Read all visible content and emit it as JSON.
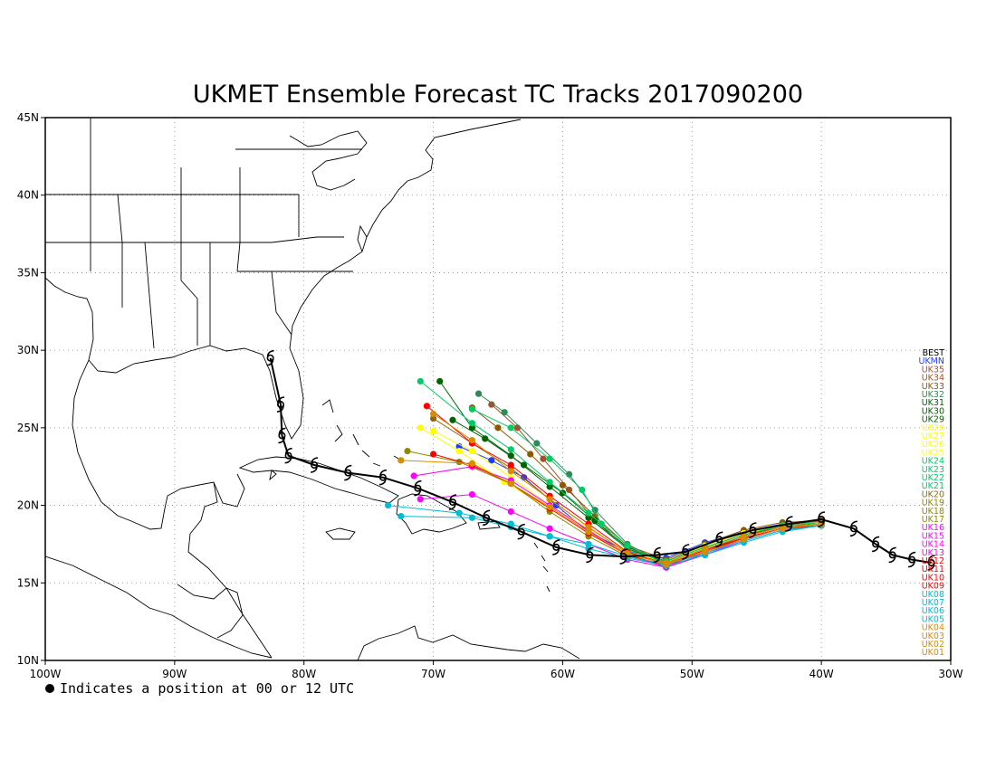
{
  "title": "UKMET Ensemble Forecast TC Tracks 2017090200",
  "footnote": "Indicates a position at 00 or 12 UTC",
  "map": {
    "lon_range": [
      -100,
      -30
    ],
    "lat_range": [
      10,
      45
    ],
    "lon_ticks": [
      {
        "value": -100,
        "label": "100W"
      },
      {
        "value": -90,
        "label": "90W"
      },
      {
        "value": -80,
        "label": "80W"
      },
      {
        "value": -70,
        "label": "70W"
      },
      {
        "value": -60,
        "label": "60W"
      },
      {
        "value": -50,
        "label": "50W"
      },
      {
        "value": -40,
        "label": "40W"
      },
      {
        "value": -30,
        "label": "30W"
      }
    ],
    "lat_ticks": [
      {
        "value": 10,
        "label": "10N"
      },
      {
        "value": 15,
        "label": "15N"
      },
      {
        "value": 20,
        "label": "20N"
      },
      {
        "value": 25,
        "label": "25N"
      },
      {
        "value": 30,
        "label": "30N"
      },
      {
        "value": 35,
        "label": "35N"
      },
      {
        "value": 40,
        "label": "40N"
      },
      {
        "value": 45,
        "label": "45N"
      }
    ],
    "grid": true
  },
  "best_track": [
    [
      -31.5,
      16.3
    ],
    [
      -33.0,
      16.5
    ],
    [
      -34.5,
      16.8
    ],
    [
      -35.8,
      17.5
    ],
    [
      -37.5,
      18.5
    ],
    [
      -40.0,
      19.1
    ],
    [
      -42.5,
      18.8
    ],
    [
      -45.3,
      18.4
    ],
    [
      -47.9,
      17.8
    ],
    [
      -50.5,
      17.0
    ],
    [
      -52.7,
      16.8
    ],
    [
      -55.3,
      16.7
    ],
    [
      -57.9,
      16.8
    ],
    [
      -60.5,
      17.3
    ],
    [
      -63.2,
      18.3
    ],
    [
      -65.9,
      19.2
    ],
    [
      -68.5,
      20.2
    ],
    [
      -71.2,
      21.1
    ],
    [
      -73.9,
      21.8
    ],
    [
      -76.6,
      22.1
    ],
    [
      -79.2,
      22.6
    ],
    [
      -81.2,
      23.2
    ],
    [
      -81.7,
      24.5
    ],
    [
      -81.8,
      26.5
    ],
    [
      -82.6,
      29.5
    ]
  ],
  "legend": [
    {
      "label": "BEST",
      "color": "#000000"
    },
    {
      "label": "UKMN",
      "color": "#1e3cff"
    },
    {
      "label": "UK35",
      "color": "#a0522d"
    },
    {
      "label": "UK34",
      "color": "#a0522d"
    },
    {
      "label": "UK33",
      "color": "#8b5a00"
    },
    {
      "label": "UK32",
      "color": "#2e8b57"
    },
    {
      "label": "UK31",
      "color": "#006400"
    },
    {
      "label": "UK30",
      "color": "#006400"
    },
    {
      "label": "UK29",
      "color": "#006400"
    },
    {
      "label": "UK28",
      "color": "#ffff00"
    },
    {
      "label": "UK27",
      "color": "#ffff00"
    },
    {
      "label": "UK26",
      "color": "#ffff00"
    },
    {
      "label": "UK25",
      "color": "#ffff00"
    },
    {
      "label": "UK24",
      "color": "#00cc66"
    },
    {
      "label": "UK23",
      "color": "#00cc66"
    },
    {
      "label": "UK22",
      "color": "#00cc66"
    },
    {
      "label": "UK21",
      "color": "#00cc66"
    },
    {
      "label": "UK20",
      "color": "#8b6914"
    },
    {
      "label": "UK19",
      "color": "#8b8b00"
    },
    {
      "label": "UK18",
      "color": "#8b8b00"
    },
    {
      "label": "UK17",
      "color": "#8b8b00"
    },
    {
      "label": "UK16",
      "color": "#ff00ff"
    },
    {
      "label": "UK15",
      "color": "#ff00ff"
    },
    {
      "label": "UK14",
      "color": "#ff00ff"
    },
    {
      "label": "UK13",
      "color": "#ff00ff"
    },
    {
      "label": "UK12",
      "color": "#ff0000"
    },
    {
      "label": "UK11",
      "color": "#ff0000"
    },
    {
      "label": "UK10",
      "color": "#ff0000"
    },
    {
      "label": "UK09",
      "color": "#ff0000"
    },
    {
      "label": "UK08",
      "color": "#00bcd4"
    },
    {
      "label": "UK07",
      "color": "#00bcd4"
    },
    {
      "label": "UK06",
      "color": "#00bcd4"
    },
    {
      "label": "UK05",
      "color": "#00bcd4"
    },
    {
      "label": "UK04",
      "color": "#d98c00"
    },
    {
      "label": "UK03",
      "color": "#d98c00"
    },
    {
      "label": "UK02",
      "color": "#d98c00"
    },
    {
      "label": "UK01",
      "color": "#d98c00"
    }
  ],
  "ensemble_tracks": [
    {
      "member": "UKMN",
      "color": "#1e3cff",
      "points": [
        [
          -40,
          19.0
        ],
        [
          -43,
          18.8
        ],
        [
          -46,
          18.3
        ],
        [
          -49,
          17.6
        ],
        [
          -52,
          16.6
        ],
        [
          -55,
          17.0
        ],
        [
          -58,
          18.3
        ],
        [
          -60.5,
          20.0
        ],
        [
          -63,
          21.8
        ],
        [
          -65.5,
          22.9
        ],
        [
          -68,
          23.8
        ]
      ]
    },
    {
      "member": "UK35",
      "color": "#a0522d",
      "points": [
        [
          -40,
          19.0
        ],
        [
          -43,
          18.7
        ],
        [
          -46,
          18.2
        ],
        [
          -49,
          17.4
        ],
        [
          -52,
          16.4
        ],
        [
          -55,
          17.2
        ],
        [
          -57.5,
          19.0
        ],
        [
          -59.5,
          21.0
        ],
        [
          -61.5,
          23.0
        ],
        [
          -63.5,
          25.0
        ],
        [
          -65.5,
          26.5
        ]
      ]
    },
    {
      "member": "UK33",
      "color": "#8b5a00",
      "points": [
        [
          -40,
          19.0
        ],
        [
          -43,
          18.9
        ],
        [
          -46,
          18.4
        ],
        [
          -49,
          17.5
        ],
        [
          -52,
          16.5
        ],
        [
          -55,
          17.4
        ],
        [
          -57.5,
          19.3
        ],
        [
          -60,
          21.3
        ],
        [
          -62.5,
          23.3
        ],
        [
          -65,
          25.0
        ],
        [
          -67,
          26.3
        ]
      ]
    },
    {
      "member": "UK32",
      "color": "#2e8b57",
      "points": [
        [
          -40,
          18.9
        ],
        [
          -43,
          18.6
        ],
        [
          -46,
          18.0
        ],
        [
          -49,
          17.2
        ],
        [
          -52,
          16.2
        ],
        [
          -55,
          17.5
        ],
        [
          -57.5,
          19.7
        ],
        [
          -59.5,
          22.0
        ],
        [
          -62,
          24.0
        ],
        [
          -64.5,
          26.0
        ],
        [
          -66.5,
          27.2
        ]
      ]
    },
    {
      "member": "UK31",
      "color": "#006400",
      "points": [
        [
          -40,
          18.8
        ],
        [
          -43,
          18.5
        ],
        [
          -46,
          17.9
        ],
        [
          -49,
          17.1
        ],
        [
          -52,
          16.3
        ],
        [
          -55,
          17.2
        ],
        [
          -58,
          19.2
        ],
        [
          -61,
          21.2
        ],
        [
          -64,
          23.2
        ],
        [
          -67,
          25.0
        ],
        [
          -69.5,
          28.0
        ]
      ]
    },
    {
      "member": "UK29",
      "color": "#006400",
      "points": [
        [
          -40,
          18.8
        ],
        [
          -43,
          18.6
        ],
        [
          -46,
          18.1
        ],
        [
          -49,
          17.3
        ],
        [
          -52,
          16.4
        ],
        [
          -55,
          17.3
        ],
        [
          -57.5,
          19.0
        ],
        [
          -60,
          20.8
        ],
        [
          -63,
          22.6
        ],
        [
          -66,
          24.3
        ],
        [
          -68.5,
          25.5
        ]
      ]
    },
    {
      "member": "UK27",
      "color": "#ffff00",
      "points": [
        [
          -40,
          18.9
        ],
        [
          -43,
          18.7
        ],
        [
          -46,
          18.2
        ],
        [
          -49,
          17.4
        ],
        [
          -52,
          16.3
        ],
        [
          -55,
          17.0
        ],
        [
          -58,
          18.5
        ],
        [
          -61,
          20.0
        ],
        [
          -64,
          21.8
        ],
        [
          -67,
          23.5
        ],
        [
          -70,
          24.8
        ]
      ]
    },
    {
      "member": "UK25",
      "color": "#ffff00",
      "points": [
        [
          -40,
          18.8
        ],
        [
          -43,
          18.6
        ],
        [
          -46,
          18.0
        ],
        [
          -49,
          17.2
        ],
        [
          -52,
          16.2
        ],
        [
          -55,
          16.9
        ],
        [
          -58,
          18.2
        ],
        [
          -61,
          19.8
        ],
        [
          -64.5,
          21.5
        ],
        [
          -68,
          23.5
        ],
        [
          -71,
          25.0
        ]
      ]
    },
    {
      "member": "UK24",
      "color": "#00cc66",
      "points": [
        [
          -40,
          18.9
        ],
        [
          -43,
          18.7
        ],
        [
          -46,
          18.1
        ],
        [
          -49,
          17.3
        ],
        [
          -52,
          16.4
        ],
        [
          -55,
          17.1
        ],
        [
          -57,
          18.8
        ],
        [
          -58.5,
          21.0
        ],
        [
          -61,
          23.0
        ],
        [
          -64,
          25.0
        ],
        [
          -67,
          26.2
        ]
      ]
    },
    {
      "member": "UK22",
      "color": "#00cc66",
      "points": [
        [
          -40,
          18.8
        ],
        [
          -43,
          18.5
        ],
        [
          -46,
          17.8
        ],
        [
          -49,
          17.0
        ],
        [
          -52,
          16.2
        ],
        [
          -55,
          17.4
        ],
        [
          -58,
          19.5
        ],
        [
          -61,
          21.5
        ],
        [
          -64,
          23.6
        ],
        [
          -67,
          25.3
        ],
        [
          -71,
          28.0
        ]
      ]
    },
    {
      "member": "UK20",
      "color": "#8b6914",
      "points": [
        [
          -40,
          18.8
        ],
        [
          -43,
          18.6
        ],
        [
          -46,
          18.0
        ],
        [
          -49,
          17.2
        ],
        [
          -52,
          16.3
        ],
        [
          -55,
          16.9
        ],
        [
          -58,
          18.6
        ],
        [
          -61,
          20.4
        ],
        [
          -64,
          22.4
        ],
        [
          -67,
          24.0
        ],
        [
          -70,
          25.6
        ]
      ]
    },
    {
      "member": "UK18",
      "color": "#8b8b00",
      "points": [
        [
          -40,
          18.7
        ],
        [
          -43,
          18.5
        ],
        [
          -46,
          17.9
        ],
        [
          -49,
          17.0
        ],
        [
          -52,
          16.1
        ],
        [
          -55,
          16.7
        ],
        [
          -58,
          18.0
        ],
        [
          -61,
          19.6
        ],
        [
          -64,
          21.4
        ],
        [
          -68,
          22.8
        ],
        [
          -72,
          23.5
        ]
      ]
    },
    {
      "member": "UK16",
      "color": "#ff00ff",
      "points": [
        [
          -40,
          18.8
        ],
        [
          -43,
          18.5
        ],
        [
          -46,
          17.8
        ],
        [
          -49,
          16.9
        ],
        [
          -52,
          16.0
        ],
        [
          -55,
          16.5
        ],
        [
          -58,
          17.5
        ],
        [
          -61,
          18.5
        ],
        [
          -64,
          19.6
        ],
        [
          -67,
          20.7
        ],
        [
          -71,
          20.4
        ]
      ]
    },
    {
      "member": "UK14",
      "color": "#ff00ff",
      "points": [
        [
          -40,
          18.7
        ],
        [
          -43,
          18.4
        ],
        [
          -46,
          17.7
        ],
        [
          -49,
          16.8
        ],
        [
          -52,
          16.0
        ],
        [
          -55,
          16.8
        ],
        [
          -58,
          18.4
        ],
        [
          -61,
          20.0
        ],
        [
          -64,
          21.6
        ],
        [
          -67,
          22.5
        ],
        [
          -71.5,
          21.9
        ]
      ]
    },
    {
      "member": "UK12",
      "color": "#ff0000",
      "points": [
        [
          -40,
          18.8
        ],
        [
          -43,
          18.6
        ],
        [
          -46,
          18.0
        ],
        [
          -49,
          17.1
        ],
        [
          -52,
          16.2
        ],
        [
          -55,
          17.0
        ],
        [
          -58,
          18.8
        ],
        [
          -61,
          20.6
        ],
        [
          -64,
          22.6
        ],
        [
          -67,
          24.0
        ],
        [
          -70.5,
          26.4
        ]
      ]
    },
    {
      "member": "UK10",
      "color": "#ff0000",
      "points": [
        [
          -40,
          18.7
        ],
        [
          -43,
          18.5
        ],
        [
          -46,
          17.9
        ],
        [
          -49,
          17.0
        ],
        [
          -52,
          16.1
        ],
        [
          -55,
          16.8
        ],
        [
          -58,
          18.2
        ],
        [
          -61,
          19.8
        ],
        [
          -64,
          21.4
        ],
        [
          -67,
          22.6
        ],
        [
          -70,
          23.3
        ]
      ]
    },
    {
      "member": "UK08",
      "color": "#00bcd4",
      "points": [
        [
          -40,
          18.7
        ],
        [
          -43,
          18.4
        ],
        [
          -46,
          17.7
        ],
        [
          -49,
          16.9
        ],
        [
          -52,
          16.2
        ],
        [
          -55,
          16.7
        ],
        [
          -58,
          17.5
        ],
        [
          -61,
          18.0
        ],
        [
          -64,
          18.8
        ],
        [
          -68,
          19.5
        ],
        [
          -73.5,
          20.0
        ]
      ]
    },
    {
      "member": "UK06",
      "color": "#00bcd4",
      "points": [
        [
          -40,
          18.7
        ],
        [
          -43,
          18.3
        ],
        [
          -46,
          17.6
        ],
        [
          -49,
          16.8
        ],
        [
          -52,
          16.1
        ],
        [
          -55,
          16.6
        ],
        [
          -58,
          17.2
        ],
        [
          -61,
          18.0
        ],
        [
          -64,
          18.6
        ],
        [
          -67,
          19.2
        ],
        [
          -72.5,
          19.3
        ]
      ]
    },
    {
      "member": "UK04",
      "color": "#d98c00",
      "points": [
        [
          -40,
          18.8
        ],
        [
          -43,
          18.6
        ],
        [
          -46,
          18.0
        ],
        [
          -49,
          17.2
        ],
        [
          -52,
          16.3
        ],
        [
          -55,
          16.8
        ],
        [
          -58,
          18.3
        ],
        [
          -61,
          19.9
        ],
        [
          -64,
          21.4
        ],
        [
          -67,
          22.7
        ],
        [
          -72.5,
          22.9
        ]
      ]
    },
    {
      "member": "UK02",
      "color": "#d98c00",
      "points": [
        [
          -40,
          18.8
        ],
        [
          -43,
          18.5
        ],
        [
          -46,
          17.8
        ],
        [
          -49,
          17.0
        ],
        [
          -52,
          16.2
        ],
        [
          -55,
          16.9
        ],
        [
          -58,
          18.6
        ],
        [
          -61,
          20.4
        ],
        [
          -64,
          22.2
        ],
        [
          -67,
          24.2
        ],
        [
          -70,
          25.9
        ]
      ]
    }
  ]
}
